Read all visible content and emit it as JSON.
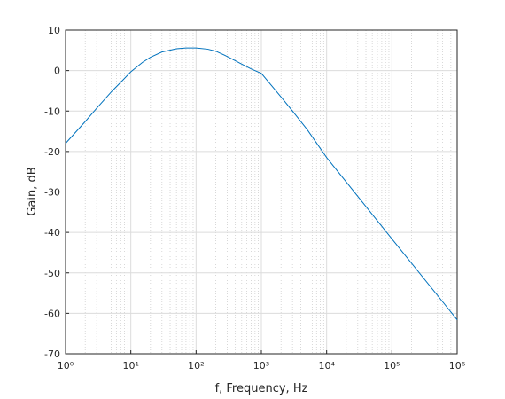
{
  "chart_data": {
    "type": "line",
    "x_label": "f, Frequency, Hz",
    "y_label": "Gain, dB",
    "x_scale": "log",
    "grid": true,
    "minor_grid": true,
    "xlim": [
      1,
      1000000
    ],
    "ylim": [
      -70,
      10
    ],
    "xticks": [
      {
        "value": 1,
        "label": "10⁰"
      },
      {
        "value": 10,
        "label": "10¹"
      },
      {
        "value": 100,
        "label": "10²"
      },
      {
        "value": 1000,
        "label": "10³"
      },
      {
        "value": 10000,
        "label": "10⁴"
      },
      {
        "value": 100000,
        "label": "10⁵"
      },
      {
        "value": 1000000,
        "label": "10⁶"
      }
    ],
    "yticks": [
      -70,
      -60,
      -50,
      -40,
      -30,
      -20,
      -10,
      0,
      10
    ],
    "series": [
      {
        "color": "#0072bd",
        "x": [
          1,
          2,
          3,
          5,
          7,
          10,
          15,
          20,
          30,
          50,
          70,
          100,
          150,
          200,
          300,
          500,
          700,
          1000,
          2000,
          3000,
          5000,
          10000,
          100000,
          1000000
        ],
        "values": [
          -18,
          -12.6,
          -9.3,
          -5.3,
          -2.9,
          -0.3,
          2.0,
          3.3,
          4.6,
          5.4,
          5.6,
          5.6,
          5.3,
          4.8,
          3.5,
          1.6,
          0.4,
          -0.7,
          -6.5,
          -10,
          -14.5,
          -21.5,
          -41.6,
          -61.6
        ]
      }
    ]
  }
}
